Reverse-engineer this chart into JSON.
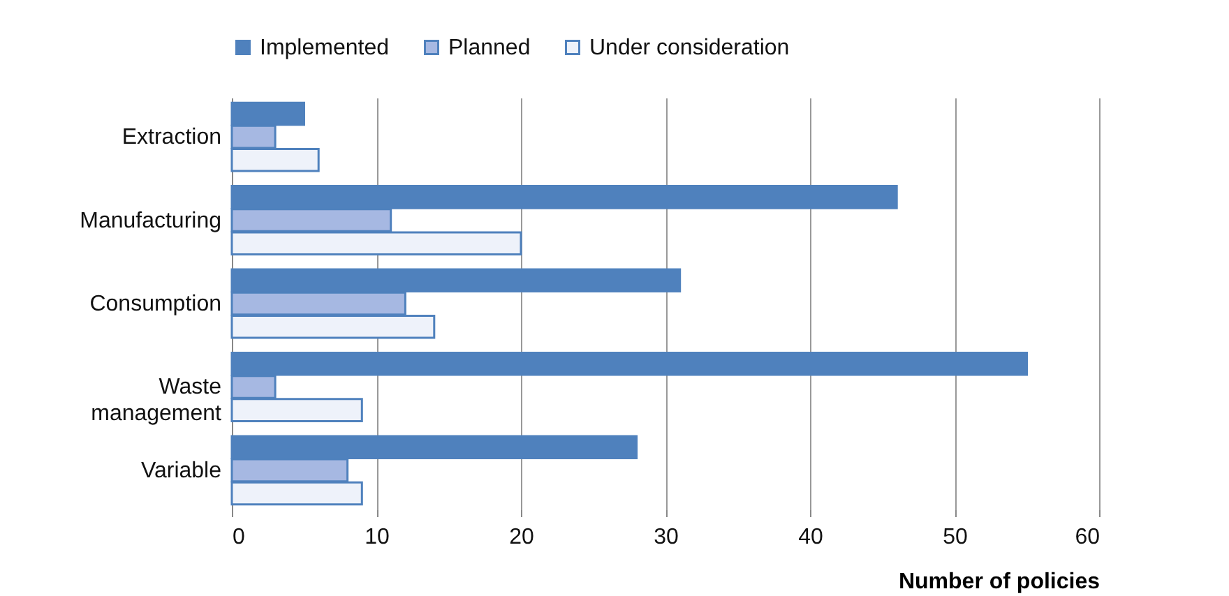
{
  "chart_data": {
    "type": "bar",
    "orientation": "horizontal",
    "xlabel": "Number of policies",
    "categories": [
      "Extraction",
      "Manufacturing",
      "Consumption",
      "Waste management",
      "Variable"
    ],
    "series": [
      {
        "name": "Implemented",
        "color": "#4f81bd",
        "values": [
          5,
          46,
          31,
          55,
          28
        ]
      },
      {
        "name": "Planned",
        "color": "#a6b8e2",
        "values": [
          3,
          11,
          12,
          3,
          8
        ]
      },
      {
        "name": "Under consideration",
        "color": "#eef2fa",
        "values": [
          6,
          20,
          14,
          9,
          9
        ]
      }
    ],
    "xlim": [
      0,
      60
    ],
    "xticks": [
      0,
      10,
      20,
      30,
      40,
      50,
      60
    ],
    "grid": "x",
    "legend": "top"
  }
}
